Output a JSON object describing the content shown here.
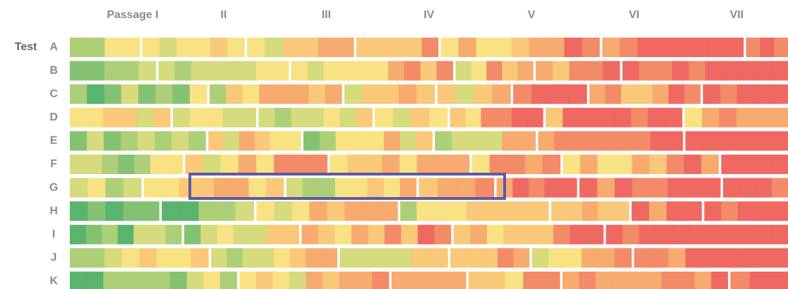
{
  "chart_data": {
    "type": "heatmap",
    "y_label": "Test",
    "x_categories": [
      "Passage I",
      "II",
      "III",
      "IV",
      "V",
      "VI",
      "VII"
    ],
    "y_categories": [
      "A",
      "B",
      "C",
      "D",
      "E",
      "F",
      "G",
      "H",
      "I",
      "J",
      "K"
    ]
  }
}
